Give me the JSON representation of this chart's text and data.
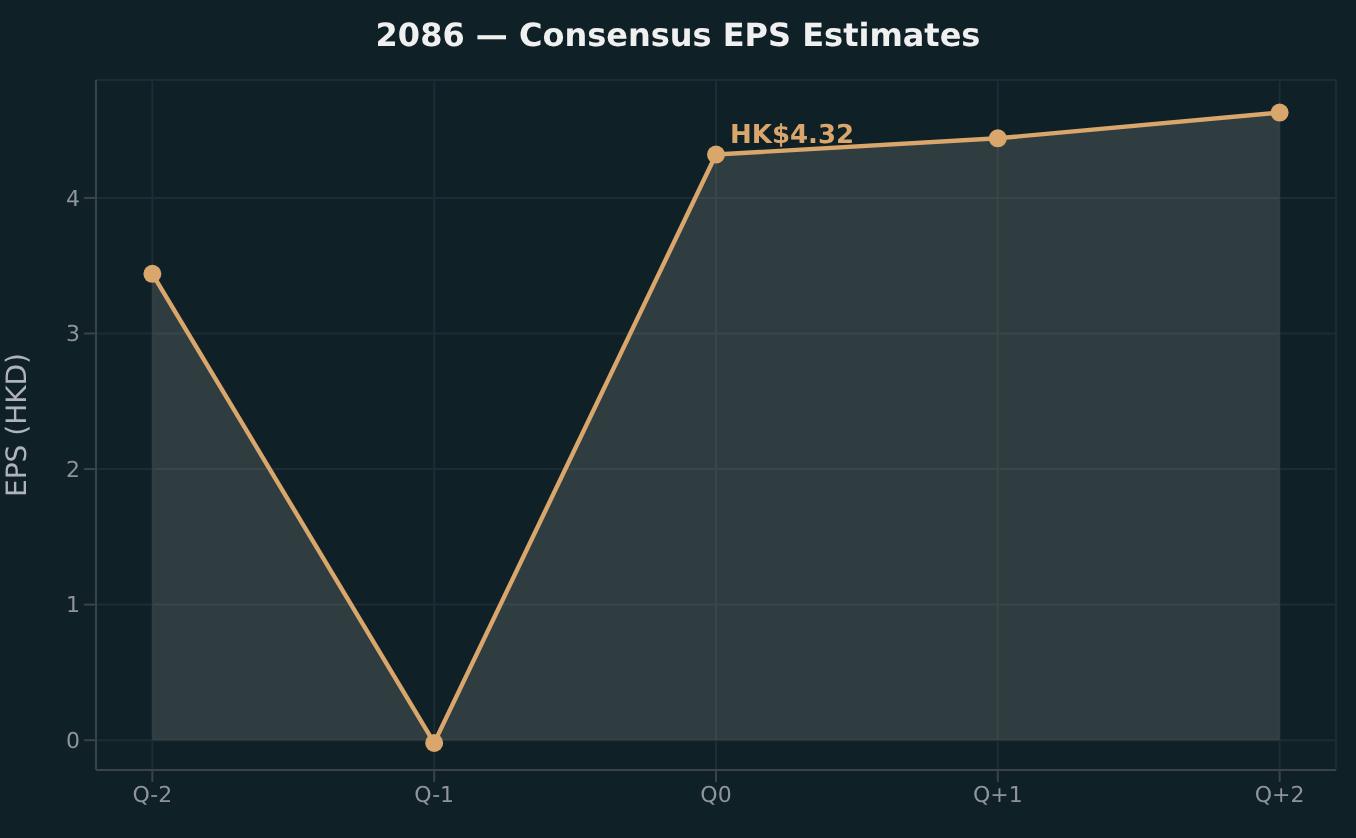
{
  "chart_data": {
    "type": "area",
    "title": "2086 — Consensus EPS Estimates",
    "ylabel": "EPS (HKD)",
    "categories": [
      "Q-2",
      "Q-1",
      "Q0",
      "Q+1",
      "Q+2"
    ],
    "series": [
      {
        "color": "#d9a66b",
        "values": [
          3.44,
          -0.02,
          4.32,
          4.44,
          4.63
        ]
      }
    ],
    "ylim": [
      -0.22,
      4.87
    ],
    "yticks": [
      0,
      1,
      2,
      3,
      4
    ],
    "grid": true,
    "marker": "circle",
    "line_style": "solid",
    "annotations": [
      {
        "text": "HK$4.32",
        "x": "Q0",
        "y": 4.32
      }
    ]
  }
}
